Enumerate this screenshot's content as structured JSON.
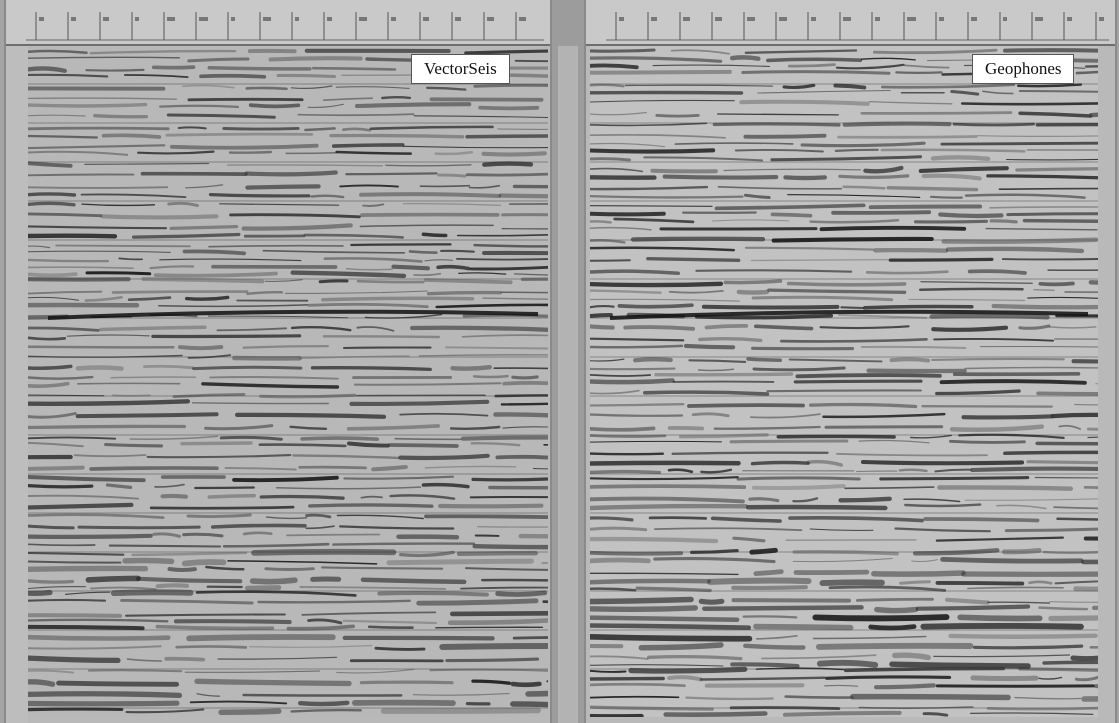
{
  "panels": [
    {
      "label": "VectorSeis"
    },
    {
      "label": "Geophones"
    }
  ],
  "icons": {
    "ruler_ticks": "ruler-ticks-icon",
    "pointer": "cursor-pointer-icon"
  }
}
